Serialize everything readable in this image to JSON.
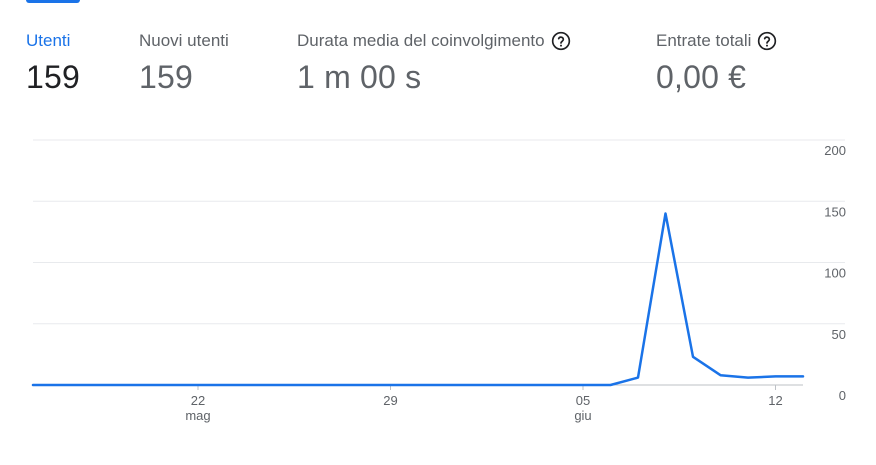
{
  "metrics": [
    {
      "label": "Utenti",
      "value": "159",
      "active": true,
      "help": false
    },
    {
      "label": "Nuovi utenti",
      "value": "159",
      "active": false,
      "help": false
    },
    {
      "label": "Durata media del coinvolgimento",
      "value": "1 m 00 s",
      "active": false,
      "help": true
    },
    {
      "label": "Entrate totali",
      "value": "0,00 €",
      "active": false,
      "help": true
    }
  ],
  "icons": {
    "help": "help-circle-icon"
  },
  "colors": {
    "accent": "#1a73e8",
    "line": "#1a73e8",
    "grid": "#e8eaed"
  },
  "chart_data": {
    "type": "line",
    "title": "",
    "xlabel": "",
    "ylabel": "",
    "ylim": [
      0,
      200
    ],
    "y_ticks": [
      "200",
      "150",
      "100",
      "50",
      "0"
    ],
    "y_tick_values": [
      200,
      150,
      100,
      50,
      0
    ],
    "x_ticks": [
      {
        "day": 22,
        "label": "22",
        "sublabel": "mag"
      },
      {
        "day": 29,
        "label": "29",
        "sublabel": ""
      },
      {
        "day": 36,
        "label": "05",
        "sublabel": "giu"
      },
      {
        "day": 43,
        "label": "12",
        "sublabel": ""
      }
    ],
    "x_start_day": 16,
    "x_end_day": 44,
    "grid": true,
    "series": [
      {
        "x": [
          16,
          17,
          18,
          19,
          20,
          21,
          22,
          23,
          24,
          25,
          26,
          27,
          28,
          29,
          30,
          31,
          32,
          33,
          34,
          35,
          36,
          37,
          38,
          39,
          40,
          41,
          42,
          43,
          44
        ],
        "values": [
          0,
          0,
          0,
          0,
          0,
          0,
          0,
          0,
          0,
          0,
          0,
          0,
          0,
          0,
          0,
          0,
          0,
          0,
          0,
          0,
          0,
          0,
          6,
          140,
          23,
          8,
          6,
          7,
          7
        ]
      }
    ]
  }
}
